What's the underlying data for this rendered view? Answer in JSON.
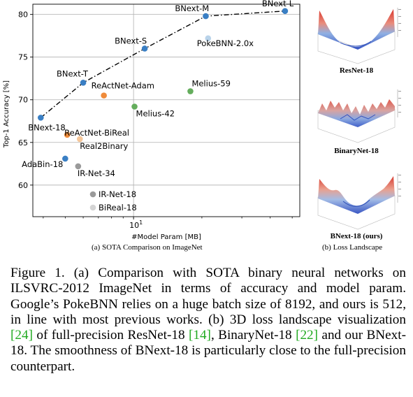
{
  "chart_data": {
    "type": "scatter",
    "xlabel": "#Model Param [MB]",
    "ylabel": "Top-1 Accuracy [%]",
    "x_scale": "log",
    "xlim": [
      3.6,
      54
    ],
    "ylim": [
      56.3,
      81.2
    ],
    "x_tick_labels": [
      "10^1"
    ],
    "y_ticks": [
      60,
      65,
      70,
      75,
      80
    ],
    "grid": true,
    "points": [
      {
        "label": "BNext-18",
        "x": 3.9,
        "y": 67.9,
        "color": "#3a7fc4"
      },
      {
        "label": "BNext-T",
        "x": 6.0,
        "y": 72.0,
        "color": "#3a7fc4"
      },
      {
        "label": "BNext-S",
        "x": 11.2,
        "y": 76.0,
        "color": "#3a7fc4"
      },
      {
        "label": "BNext-M",
        "x": 20.8,
        "y": 79.8,
        "color": "#3a7fc4"
      },
      {
        "label": "BNext-L",
        "x": 46.5,
        "y": 80.4,
        "color": "#3a7fc4"
      },
      {
        "label": "PokeBNN-2.0x",
        "x": 21.3,
        "y": 77.2,
        "color": "#b9d3ea"
      },
      {
        "label": "ReActNet-Adam",
        "x": 7.4,
        "y": 70.5,
        "color": "#ef8b3a"
      },
      {
        "label": "ReActNet-BiReal",
        "x": 5.1,
        "y": 65.9,
        "color": "#ef8b3a"
      },
      {
        "label": "Real2Binary",
        "x": 5.8,
        "y": 65.4,
        "color": "#f6c79a"
      },
      {
        "label": "Melius-59",
        "x": 17.8,
        "y": 71.0,
        "color": "#64ad5c"
      },
      {
        "label": "Melius-42",
        "x": 10.1,
        "y": 69.2,
        "color": "#64ad5c"
      },
      {
        "label": "AdaBin-18",
        "x": 5.0,
        "y": 63.1,
        "color": "#3a7fc4"
      },
      {
        "label": "IR-Net-34",
        "x": 5.7,
        "y": 62.2,
        "color": "#9a9a9a"
      }
    ],
    "trend_line": [
      "BNext-18",
      "BNext-T",
      "BNext-S",
      "BNext-M",
      "BNext-L"
    ],
    "legend": [
      {
        "label": "IR-Net-18",
        "color": "#9a9a9a"
      },
      {
        "label": "BiReal-18",
        "color": "#d4d4d4"
      }
    ],
    "legend_placement": "bottom-left"
  },
  "subcaptions": {
    "a": "(a) SOTA Comparison on ImageNet",
    "b": "(b) Loss Landscape"
  },
  "landscapes": [
    {
      "label": "ResNet-18"
    },
    {
      "label": "BinaryNet-18"
    },
    {
      "label": "BNext-18 (ours)"
    }
  ],
  "caption": {
    "part1": "Figure 1. (a) Comparison with SOTA binary neural networks on ILSVRC-2012 ImageNet in terms of accuracy and model param. Google’s PokeBNN relies on a huge batch size of 8192, and ours is 512, in line with most previous works. (b) 3D loss landscape visualization ",
    "cite1": "[24]",
    "part2": " of full-precision ResNet-18 ",
    "cite2": "[14]",
    "part3": ", BinaryNet-18 ",
    "cite3": "[22]",
    "part4": " and our BNext-18. The smoothness of BNext-18 is particularly close to the full-precision counterpart."
  }
}
